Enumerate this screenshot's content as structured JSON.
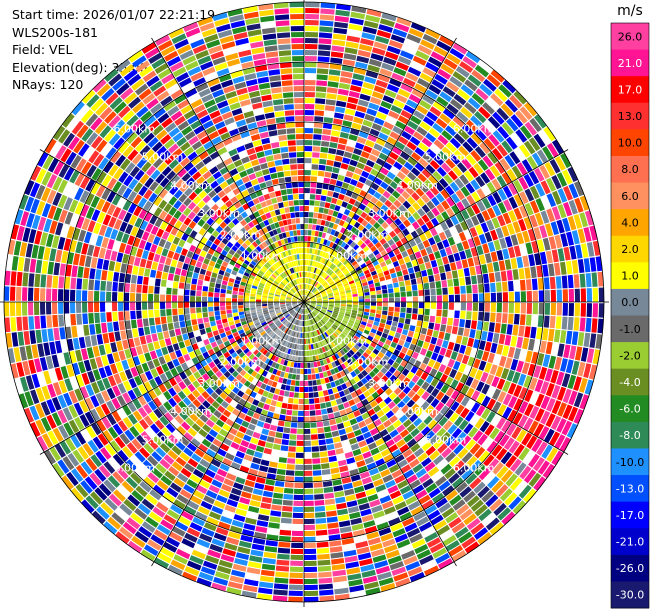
{
  "info": {
    "start_time": "Start time: 2026/01/07 22:21:19",
    "instrument": "WLS200s-181",
    "field": "Field: VEL",
    "elevation": "Elevation(deg): 35.00",
    "nrays": "NRays: 120"
  },
  "colorbar": {
    "unit": "m/s",
    "ticks": [
      "26.0",
      "21.0",
      "17.0",
      "13.0",
      "10.0",
      "8.0",
      "6.0",
      "4.0",
      "2.0",
      "1.0",
      "0.0",
      "-1.0",
      "-2.0",
      "-4.0",
      "-6.0",
      "-8.0",
      "-10.0",
      "-13.0",
      "-17.0",
      "-21.0",
      "-26.0",
      "-30.0"
    ],
    "colors": [
      "#ff40a0",
      "#ff1493",
      "#ff0000",
      "#ff3030",
      "#ff4500",
      "#ff7050",
      "#ff9060",
      "#ffa500",
      "#ffd700",
      "#ffff00",
      "#778899",
      "#6a6a6a",
      "#9acd32",
      "#6b8e23",
      "#228b22",
      "#2e8b57",
      "#1e90ff",
      "#0050ff",
      "#0000ff",
      "#0000cd",
      "#000080",
      "#191970"
    ]
  },
  "range_labels": [
    "1.00km",
    "2.00km",
    "3.00km",
    "4.00km",
    "5.00km",
    "6.00km"
  ]
}
